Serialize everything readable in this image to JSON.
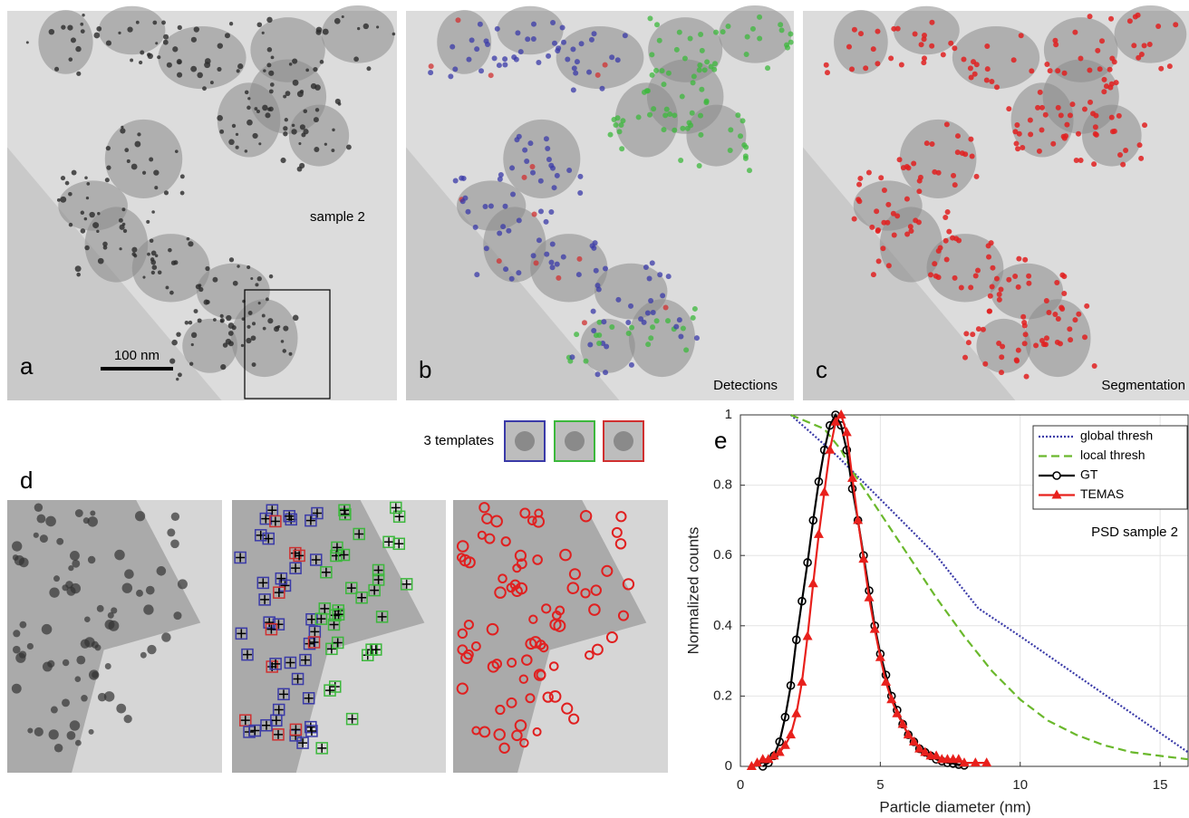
{
  "panels": {
    "a": {
      "label": "a",
      "annotation": "sample 2",
      "scale_bar": "100 nm"
    },
    "b": {
      "label": "b",
      "annotation": "Detections"
    },
    "c": {
      "label": "c",
      "annotation": "Segmentation"
    },
    "d": {
      "label": "d",
      "templates": "3 templates"
    }
  },
  "chart_data": {
    "type": "line",
    "label": "e",
    "xlabel": "Particle diameter (nm)",
    "ylabel": "Normalized counts",
    "annotation": "PSD sample 2",
    "xlim": [
      0,
      16
    ],
    "ylim": [
      0,
      1
    ],
    "xticks": [
      0,
      5,
      10,
      15
    ],
    "yticks": [
      0,
      0.2,
      0.4,
      0.6,
      0.8,
      1
    ],
    "grid": true,
    "legend": "upper right",
    "series": [
      {
        "name": "global thresh",
        "color": "#3a3aa8",
        "linestyle": "dotted",
        "marker": "none",
        "x": [
          1.8,
          3.5,
          5,
          7,
          8.5,
          10,
          12,
          14,
          16
        ],
        "values": [
          1.0,
          0.88,
          0.76,
          0.6,
          0.45,
          0.37,
          0.26,
          0.15,
          0.04
        ]
      },
      {
        "name": "local thresh",
        "color": "#6ab82c",
        "linestyle": "dashed",
        "marker": "none",
        "x": [
          1.8,
          3,
          3.6,
          4,
          5,
          6,
          7,
          8,
          9,
          10,
          11,
          12,
          13,
          14,
          15,
          16
        ],
        "values": [
          1.0,
          0.96,
          0.9,
          0.84,
          0.72,
          0.6,
          0.48,
          0.37,
          0.27,
          0.19,
          0.13,
          0.09,
          0.06,
          0.04,
          0.03,
          0.02
        ]
      },
      {
        "name": "GT",
        "color": "#000000",
        "linestyle": "solid",
        "marker": "circle",
        "x": [
          0.8,
          1.0,
          1.2,
          1.4,
          1.6,
          1.8,
          2.0,
          2.2,
          2.4,
          2.6,
          2.8,
          3.0,
          3.2,
          3.4,
          3.6,
          3.8,
          4.0,
          4.2,
          4.4,
          4.6,
          4.8,
          5.0,
          5.2,
          5.4,
          5.6,
          5.8,
          6.0,
          6.2,
          6.4,
          6.6,
          6.8,
          7.0,
          7.2,
          7.4,
          7.6,
          7.8,
          8.0
        ],
        "values": [
          0,
          0.01,
          0.03,
          0.07,
          0.14,
          0.23,
          0.36,
          0.47,
          0.58,
          0.7,
          0.81,
          0.9,
          0.97,
          1.0,
          0.97,
          0.9,
          0.79,
          0.7,
          0.6,
          0.5,
          0.4,
          0.32,
          0.26,
          0.2,
          0.16,
          0.12,
          0.09,
          0.07,
          0.05,
          0.04,
          0.03,
          0.02,
          0.015,
          0.01,
          0.008,
          0.005,
          0.003
        ]
      },
      {
        "name": "TEMAS",
        "color": "#e8201c",
        "linestyle": "solid",
        "marker": "triangle",
        "x": [
          0.4,
          0.6,
          0.8,
          1.0,
          1.2,
          1.4,
          1.6,
          1.8,
          2.0,
          2.2,
          2.4,
          2.6,
          2.8,
          3.0,
          3.2,
          3.4,
          3.6,
          3.8,
          4.0,
          4.2,
          4.4,
          4.6,
          4.8,
          5.0,
          5.2,
          5.4,
          5.6,
          5.8,
          6.0,
          6.2,
          6.4,
          6.6,
          6.8,
          7.0,
          7.2,
          7.4,
          7.6,
          7.8,
          8.0,
          8.4,
          8.8
        ],
        "values": [
          0,
          0.01,
          0.02,
          0.02,
          0.03,
          0.04,
          0.06,
          0.09,
          0.15,
          0.24,
          0.37,
          0.52,
          0.66,
          0.78,
          0.9,
          0.98,
          1.0,
          0.95,
          0.82,
          0.7,
          0.59,
          0.48,
          0.39,
          0.31,
          0.24,
          0.19,
          0.15,
          0.12,
          0.09,
          0.07,
          0.05,
          0.04,
          0.03,
          0.03,
          0.02,
          0.02,
          0.02,
          0.02,
          0.01,
          0.01,
          0.01
        ]
      }
    ]
  }
}
